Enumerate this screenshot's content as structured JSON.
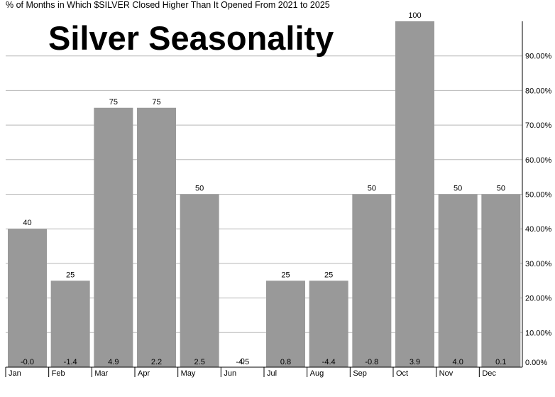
{
  "chart_data": {
    "type": "bar",
    "subtitle": "% of Months in Which $SILVER Closed Higher Than It Opened From 2021 to 2025",
    "title": "Silver Seasonality",
    "categories": [
      "Jan",
      "Feb",
      "Mar",
      "Apr",
      "May",
      "Jun",
      "Jul",
      "Aug",
      "Sep",
      "Oct",
      "Nov",
      "Dec"
    ],
    "values": [
      40,
      25,
      75,
      75,
      50,
      0,
      25,
      25,
      50,
      100,
      50,
      50
    ],
    "value_labels": [
      "40",
      "25",
      "75",
      "75",
      "50",
      "0",
      "25",
      "25",
      "50",
      "100",
      "50",
      "50"
    ],
    "average_change_labels": [
      "-0.0",
      "-1.4",
      "4.9",
      "2.2",
      "2.5",
      "-4.5",
      "0.8",
      "-4.4",
      "-0.8",
      "3.9",
      "4.0",
      "0.1"
    ],
    "ylim": [
      0,
      100
    ],
    "yticks": [
      "0.00%",
      "10.00%",
      "20.00%",
      "30.00%",
      "40.00%",
      "50.00%",
      "60.00%",
      "70.00%",
      "80.00%",
      "90.00%"
    ],
    "y_axis_position": "right",
    "grid": true,
    "bar_color": "#999999"
  }
}
